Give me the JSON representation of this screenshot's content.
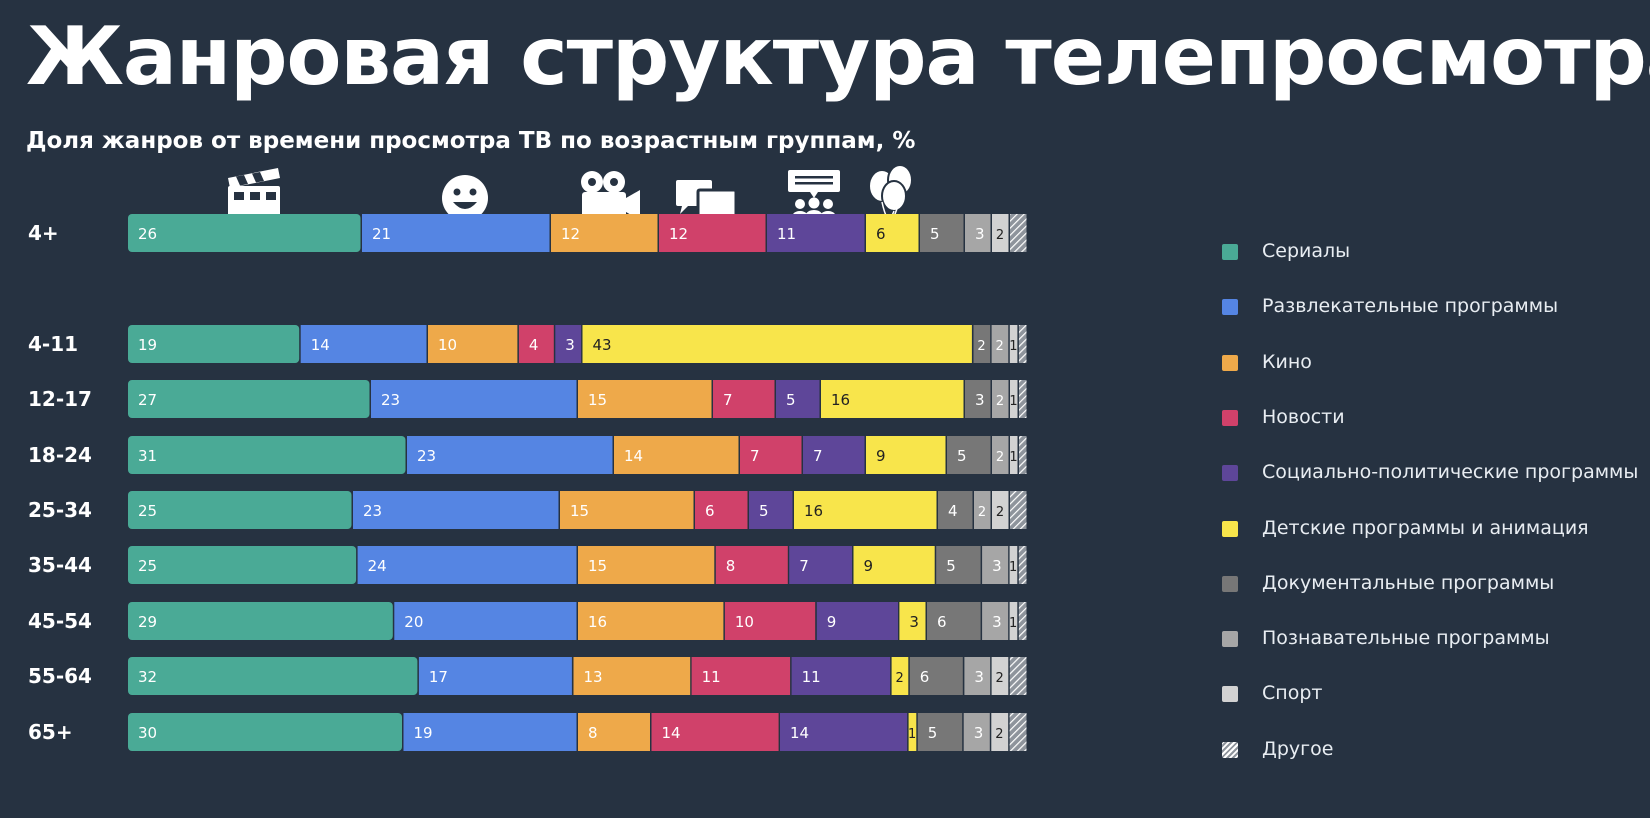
{
  "page": {
    "title": "Жанровая структура телепросмотра",
    "subtitle": "Доля жанров от времени просмотра ТВ по возрастным группам, %"
  },
  "icons": [
    "clapperboard-icon",
    "smiley-icon",
    "movie-camera-icon",
    "chat-bubbles-icon",
    "audience-icon",
    "balloons-icon"
  ],
  "chart_data": {
    "type": "bar",
    "orientation": "horizontal",
    "stacked": true,
    "title": "Доля жанров от времени просмотра ТВ по возрастным группам, %",
    "categories": [
      "4+",
      "4-11",
      "12-17",
      "18-24",
      "25-34",
      "35-44",
      "45-54",
      "55-64",
      "65+"
    ],
    "series": [
      {
        "name": "Сериалы",
        "color": "#4aaa96",
        "values": [
          26,
          19,
          27,
          31,
          25,
          25,
          29,
          32,
          30
        ]
      },
      {
        "name": "Развлекательные программы",
        "color": "#5585e3",
        "values": [
          21,
          14,
          23,
          23,
          23,
          24,
          20,
          17,
          19
        ]
      },
      {
        "name": "Кино",
        "color": "#eea94a",
        "values": [
          12,
          10,
          15,
          14,
          15,
          15,
          16,
          13,
          8
        ]
      },
      {
        "name": "Новости",
        "color": "#d0416a",
        "values": [
          12,
          4,
          7,
          7,
          6,
          8,
          10,
          11,
          14
        ]
      },
      {
        "name": "Социально-политические программы",
        "color": "#5e4699",
        "values": [
          11,
          3,
          5,
          7,
          5,
          7,
          9,
          11,
          14
        ]
      },
      {
        "name": "Детские программы и анимация",
        "color": "#f8e54b",
        "values": [
          6,
          43,
          16,
          9,
          16,
          9,
          3,
          2,
          1
        ]
      },
      {
        "name": "Документальные программы",
        "color": "#777777",
        "values": [
          5,
          2,
          3,
          5,
          4,
          5,
          6,
          6,
          5
        ]
      },
      {
        "name": "Познавательные программы",
        "color": "#a6a6a6",
        "values": [
          3,
          2,
          2,
          2,
          2,
          3,
          3,
          3,
          3
        ]
      },
      {
        "name": "Спорт",
        "color": "#d2d2d2",
        "values": [
          2,
          1,
          1,
          1,
          2,
          1,
          1,
          2,
          2
        ]
      },
      {
        "name": "Другое",
        "color": "hatched",
        "values": [
          2,
          1,
          1,
          1,
          2,
          1,
          1,
          2,
          2
        ]
      }
    ],
    "legend": "right",
    "grid": false
  }
}
